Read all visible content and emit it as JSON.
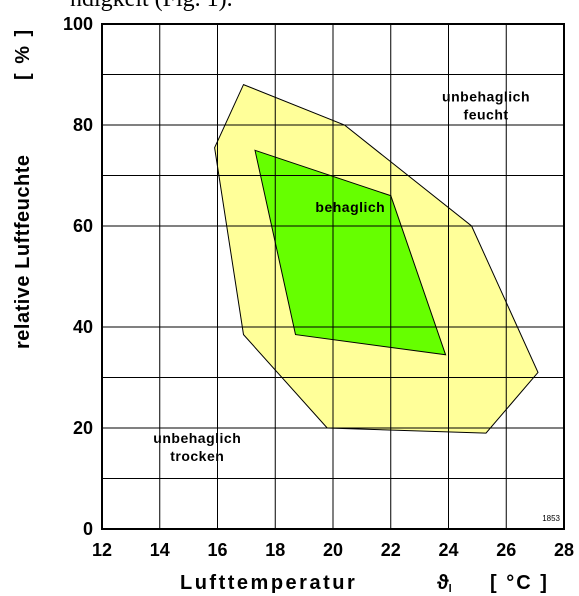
{
  "caption_fragment": "ndigkeit (Fig. 1).",
  "chart_data": {
    "type": "area",
    "xlabel": {
      "text": "Lufttemperatur",
      "symbol": "ϑ",
      "subscript": "l",
      "unit": "[ °C ]"
    },
    "ylabel": {
      "text": "relative Luftfeuchte",
      "unit": "[ % ]"
    },
    "xlim": [
      12,
      28
    ],
    "ylim": [
      0,
      100
    ],
    "x_ticks": [
      "12",
      "14",
      "16",
      "18",
      "20",
      "22",
      "24",
      "26",
      "28"
    ],
    "y_ticks": [
      "0",
      "20",
      "40",
      "60",
      "80",
      "100"
    ],
    "grid": {
      "x_step": 2,
      "y_lines": [
        10,
        20,
        30,
        40,
        60,
        70,
        80,
        90
      ]
    },
    "figure_code": "1853",
    "colors": {
      "outer": "#ffff99",
      "inner": "#66ff00",
      "grid": "#000000"
    },
    "regions": [
      {
        "label": "",
        "color": "#ffff99",
        "points": [
          [
            16.9,
            88
          ],
          [
            20.4,
            80
          ],
          [
            24.8,
            60
          ],
          [
            27.1,
            31
          ],
          [
            25.3,
            19
          ],
          [
            19.8,
            20
          ],
          [
            16.9,
            38.5
          ],
          [
            15.9,
            75.5
          ]
        ]
      },
      {
        "label": "behaglich",
        "color": "#66ff00",
        "points": [
          [
            17.3,
            75
          ],
          [
            22.0,
            66
          ],
          [
            23.9,
            34.5
          ],
          [
            18.7,
            38.5
          ]
        ]
      }
    ],
    "annotations": [
      {
        "lines": [
          "unbehaglich",
          "feucht"
        ],
        "x": 25.3,
        "y": 84.7
      },
      {
        "lines": [
          "behaglich"
        ],
        "x": 20.6,
        "y": 62.8
      },
      {
        "lines": [
          "unbehaglich",
          "trocken"
        ],
        "x": 15.3,
        "y": 17
      }
    ]
  }
}
